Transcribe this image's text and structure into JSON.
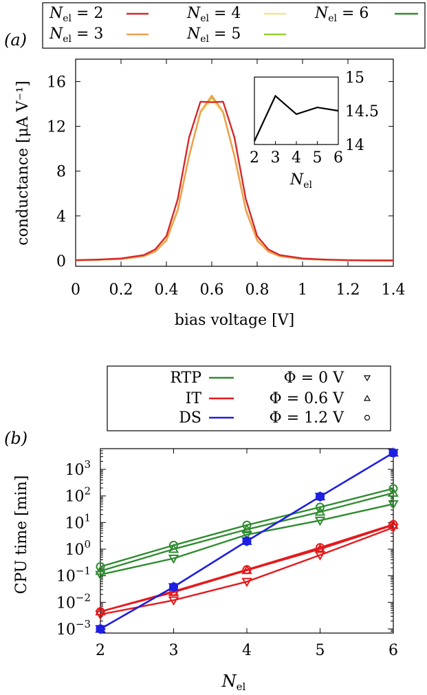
{
  "colors": {
    "N2": "#d62728",
    "N3": "#f0a050",
    "N4": "#f0e68c",
    "N5": "#9ACD32",
    "N6": "#2e8b2e",
    "RTP": "#2e8b2e",
    "IT": "#e31a1c",
    "DS": "#1f1fe0"
  },
  "panel_a": {
    "label": "(a)",
    "legend": [
      "Nel = 2",
      "Nel = 3",
      "Nel = 4",
      "Nel = 5",
      "Nel = 6"
    ],
    "xlabel": "bias voltage [V]",
    "ylabel": "conductance [μA V⁻¹]",
    "inset_xlabel": "Nel"
  },
  "panel_b": {
    "label": "(b)",
    "legend_methods": [
      "RTP",
      "IT",
      "DS"
    ],
    "legend_bias": [
      "Φ = 0 V",
      "Φ = 0.6 V",
      "Φ = 1.2 V"
    ],
    "xlabel": "Nel",
    "ylabel": "CPU time [min]"
  },
  "chart_data": [
    {
      "type": "line",
      "title": "",
      "xlabel": "bias voltage [V]",
      "ylabel": "conductance [μA V⁻¹]",
      "xlim": [
        0,
        1.4
      ],
      "ylim": [
        -0.5,
        18
      ],
      "xticks": [
        "0",
        "0.2",
        "0.4",
        "0.6",
        "0.8",
        "1",
        "1.2",
        "1.4"
      ],
      "yticks": [
        "0",
        "4",
        "8",
        "12",
        "16"
      ],
      "grid": false,
      "legend_position": "top",
      "series": [
        {
          "name": "Nel = 2",
          "x": [
            0,
            0.1,
            0.2,
            0.3,
            0.35,
            0.4,
            0.45,
            0.5,
            0.55,
            0.6,
            0.65,
            0.7,
            0.75,
            0.8,
            0.85,
            0.9,
            1.0,
            1.1,
            1.2,
            1.3,
            1.4
          ],
          "y": [
            0.05,
            0.1,
            0.2,
            0.5,
            1.0,
            2.2,
            5.5,
            11.0,
            14.2,
            14.15,
            14.2,
            11.0,
            5.5,
            2.2,
            1.0,
            0.5,
            0.2,
            0.1,
            0.05,
            0.03,
            0.02
          ]
        },
        {
          "name": "Nel = 3",
          "x": [
            0,
            0.1,
            0.2,
            0.3,
            0.35,
            0.4,
            0.45,
            0.5,
            0.55,
            0.6,
            0.65,
            0.7,
            0.75,
            0.8,
            0.85,
            0.9,
            1.0,
            1.1,
            1.2,
            1.3,
            1.4
          ],
          "y": [
            0.04,
            0.08,
            0.15,
            0.4,
            0.8,
            1.8,
            4.5,
            9.3,
            13.3,
            14.75,
            13.3,
            9.3,
            4.5,
            1.8,
            0.8,
            0.4,
            0.15,
            0.08,
            0.04,
            0.02,
            0.02
          ]
        },
        {
          "name": "Nel = 4",
          "x": [
            0,
            0.1,
            0.2,
            0.3,
            0.35,
            0.4,
            0.45,
            0.5,
            0.55,
            0.6,
            0.65,
            0.7,
            0.75,
            0.8,
            0.85,
            0.9,
            1.0,
            1.1,
            1.2,
            1.3,
            1.4
          ],
          "y": [
            0.04,
            0.08,
            0.15,
            0.4,
            0.8,
            1.9,
            4.6,
            9.4,
            13.2,
            14.4,
            13.2,
            9.4,
            4.6,
            1.9,
            0.8,
            0.4,
            0.15,
            0.08,
            0.04,
            0.02,
            0.02
          ]
        },
        {
          "name": "Nel = 5",
          "x": [
            0,
            0.1,
            0.2,
            0.3,
            0.35,
            0.4,
            0.45,
            0.5,
            0.55,
            0.6,
            0.65,
            0.7,
            0.75,
            0.8,
            0.85,
            0.9,
            1.0,
            1.1,
            1.2,
            1.3,
            1.4
          ],
          "y": [
            0.04,
            0.08,
            0.15,
            0.4,
            0.8,
            1.9,
            4.6,
            9.4,
            13.2,
            14.55,
            13.2,
            9.4,
            4.6,
            1.9,
            0.8,
            0.4,
            0.15,
            0.08,
            0.04,
            0.02,
            0.02
          ]
        },
        {
          "name": "Nel = 6",
          "x": [
            0,
            0.1,
            0.2,
            0.3,
            0.35,
            0.4,
            0.45,
            0.5,
            0.55,
            0.6,
            0.65,
            0.7,
            0.75,
            0.8,
            0.85,
            0.9,
            1.0,
            1.1,
            1.2,
            1.3,
            1.4
          ],
          "y": [
            0.04,
            0.08,
            0.15,
            0.4,
            0.8,
            1.9,
            4.6,
            9.4,
            13.2,
            14.5,
            13.2,
            9.4,
            4.6,
            1.9,
            0.8,
            0.4,
            0.15,
            0.08,
            0.04,
            0.02,
            0.02
          ]
        }
      ]
    },
    {
      "type": "line",
      "title": "",
      "xlabel": "Nel",
      "ylabel": "",
      "xlim": [
        2,
        6
      ],
      "ylim": [
        14,
        15
      ],
      "xticks": [
        "2",
        "3",
        "4",
        "5",
        "6"
      ],
      "yticks": [
        "14",
        "14.5",
        "15"
      ],
      "series": [
        {
          "x": [
            2,
            3,
            4,
            5,
            6
          ],
          "y": [
            14.05,
            14.72,
            14.45,
            14.55,
            14.5
          ]
        }
      ]
    },
    {
      "type": "line",
      "title": "",
      "xlabel": "Nel",
      "ylabel": "CPU time [min]",
      "xlim": [
        2,
        6
      ],
      "ylim": [
        0.0007,
        6000
      ],
      "yscale": "log",
      "xticks": [
        "2",
        "3",
        "4",
        "5",
        "6"
      ],
      "yticks": [
        "10^-3",
        "10^-2",
        "10^-1",
        "10^0",
        "10^1",
        "10^2",
        "10^3"
      ],
      "grid": false,
      "legend_position": "top",
      "x": [
        2,
        3,
        4,
        5,
        6
      ],
      "series": [
        {
          "method": "RTP",
          "bias": "Φ = 0 V",
          "values": [
            0.11,
            0.45,
            3.5,
            12,
            50
          ]
        },
        {
          "method": "RTP",
          "bias": "Φ = 0.6 V",
          "values": [
            0.15,
            1.0,
            5.5,
            25,
            130
          ]
        },
        {
          "method": "RTP",
          "bias": "Φ = 1.2 V",
          "values": [
            0.22,
            1.4,
            8.0,
            38,
            190
          ]
        },
        {
          "method": "IT",
          "bias": "Φ = 0 V",
          "values": [
            0.0035,
            0.012,
            0.06,
            0.6,
            6.5
          ]
        },
        {
          "method": "IT",
          "bias": "Φ = 0.6 V",
          "values": [
            0.0045,
            0.024,
            0.16,
            1.0,
            8.0
          ]
        },
        {
          "method": "IT",
          "bias": "Φ = 1.2 V",
          "values": [
            0.0045,
            0.026,
            0.17,
            1.15,
            8.5
          ]
        },
        {
          "method": "DS",
          "bias": "Φ = 0 V",
          "values": [
            0.001,
            0.038,
            2.0,
            95,
            4200
          ]
        },
        {
          "method": "DS",
          "bias": "Φ = 0.6 V",
          "values": [
            0.001,
            0.038,
            2.0,
            95,
            4200
          ]
        },
        {
          "method": "DS",
          "bias": "Φ = 1.2 V",
          "values": [
            0.001,
            0.038,
            2.0,
            95,
            4200
          ]
        }
      ]
    }
  ]
}
